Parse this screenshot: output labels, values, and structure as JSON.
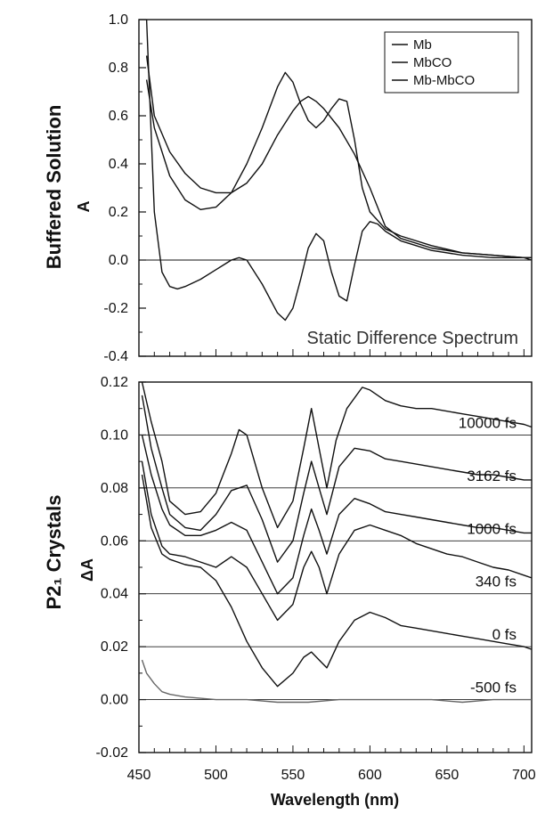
{
  "chart_data": [
    {
      "type": "line",
      "panel_label": "Buffered Solution",
      "ylabel": "A",
      "xlim": [
        450,
        705
      ],
      "ylim": [
        -0.4,
        1.0
      ],
      "yticks": [
        -0.4,
        -0.2,
        0.0,
        0.2,
        0.4,
        0.6,
        0.8,
        1.0
      ],
      "ytick_labels": [
        "-0.4",
        "-0.2",
        "0.0",
        "0.2",
        "0.4",
        "0.6",
        "0.8",
        "1.0"
      ],
      "legend_position": "top-right",
      "annotation": "Static Difference Spectrum",
      "zero_line": 0.0,
      "series": [
        {
          "name": "Mb",
          "x": [
            455,
            460,
            470,
            480,
            490,
            500,
            510,
            520,
            530,
            540,
            550,
            555,
            560,
            565,
            570,
            580,
            590,
            600,
            610,
            620,
            640,
            660,
            680,
            700,
            705
          ],
          "y": [
            0.85,
            0.6,
            0.45,
            0.36,
            0.3,
            0.28,
            0.28,
            0.32,
            0.4,
            0.52,
            0.62,
            0.66,
            0.68,
            0.66,
            0.63,
            0.55,
            0.44,
            0.3,
            0.14,
            0.09,
            0.05,
            0.03,
            0.02,
            0.01,
            0.01
          ]
        },
        {
          "name": "MbCO",
          "x": [
            455,
            460,
            470,
            480,
            490,
            500,
            510,
            520,
            530,
            540,
            545,
            550,
            555,
            560,
            565,
            570,
            575,
            580,
            585,
            590,
            595,
            600,
            610,
            620,
            640,
            660,
            680,
            700,
            705
          ],
          "y": [
            0.75,
            0.55,
            0.35,
            0.25,
            0.21,
            0.22,
            0.28,
            0.4,
            0.55,
            0.72,
            0.78,
            0.74,
            0.65,
            0.58,
            0.55,
            0.58,
            0.63,
            0.67,
            0.66,
            0.5,
            0.3,
            0.2,
            0.13,
            0.1,
            0.06,
            0.03,
            0.02,
            0.01,
            0.01
          ]
        },
        {
          "name": "Mb-MbCO",
          "x": [
            455,
            460,
            465,
            470,
            475,
            480,
            490,
            500,
            510,
            515,
            520,
            530,
            540,
            545,
            550,
            555,
            560,
            565,
            570,
            575,
            580,
            585,
            590,
            595,
            600,
            605,
            610,
            620,
            640,
            660,
            680,
            700,
            705
          ],
          "y": [
            1.0,
            0.2,
            -0.05,
            -0.11,
            -0.12,
            -0.11,
            -0.08,
            -0.04,
            0.0,
            0.01,
            0.0,
            -0.1,
            -0.22,
            -0.25,
            -0.2,
            -0.08,
            0.05,
            0.11,
            0.08,
            -0.05,
            -0.15,
            -0.17,
            -0.02,
            0.12,
            0.16,
            0.15,
            0.12,
            0.08,
            0.04,
            0.02,
            0.01,
            0.01,
            0.0
          ]
        }
      ]
    },
    {
      "type": "line",
      "panel_label": "P2₁ Crystals",
      "ylabel": "ΔA",
      "xlabel": "Wavelength (nm)",
      "xlim": [
        450,
        705
      ],
      "xticks": [
        450,
        500,
        550,
        600,
        650,
        700
      ],
      "ylim": [
        -0.02,
        0.12
      ],
      "yticks": [
        -0.02,
        0.0,
        0.02,
        0.04,
        0.06,
        0.08,
        0.1,
        0.12
      ],
      "ytick_labels": [
        "-0.02",
        "0.00",
        "0.02",
        "0.04",
        "0.06",
        "0.08",
        "0.10",
        "0.12"
      ],
      "series": [
        {
          "name": "10000 fs",
          "baseline": 0.1,
          "x": [
            452,
            458,
            465,
            470,
            480,
            490,
            500,
            510,
            515,
            520,
            530,
            540,
            550,
            557,
            562,
            567,
            572,
            578,
            585,
            595,
            600,
            610,
            620,
            630,
            640,
            650,
            660,
            670,
            680,
            690,
            700,
            705
          ],
          "y": [
            0.12,
            0.105,
            0.09,
            0.075,
            0.07,
            0.071,
            0.078,
            0.093,
            0.102,
            0.1,
            0.08,
            0.065,
            0.075,
            0.095,
            0.11,
            0.095,
            0.08,
            0.098,
            0.11,
            0.118,
            0.117,
            0.113,
            0.111,
            0.11,
            0.11,
            0.109,
            0.108,
            0.107,
            0.106,
            0.105,
            0.104,
            0.103
          ]
        },
        {
          "name": "3162 fs",
          "baseline": 0.08,
          "x": [
            452,
            458,
            465,
            470,
            480,
            490,
            500,
            510,
            520,
            530,
            540,
            550,
            557,
            562,
            567,
            572,
            580,
            590,
            600,
            610,
            620,
            630,
            640,
            650,
            660,
            670,
            680,
            690,
            700,
            705
          ],
          "y": [
            0.115,
            0.095,
            0.08,
            0.07,
            0.065,
            0.064,
            0.07,
            0.079,
            0.081,
            0.068,
            0.052,
            0.06,
            0.078,
            0.09,
            0.08,
            0.07,
            0.088,
            0.095,
            0.094,
            0.091,
            0.09,
            0.089,
            0.088,
            0.087,
            0.086,
            0.085,
            0.085,
            0.084,
            0.083,
            0.083
          ]
        },
        {
          "name": "1000 fs",
          "baseline": 0.06,
          "x": [
            452,
            458,
            465,
            470,
            480,
            490,
            500,
            510,
            520,
            530,
            540,
            550,
            557,
            562,
            567,
            572,
            580,
            590,
            600,
            610,
            620,
            630,
            640,
            650,
            660,
            670,
            680,
            690,
            700,
            705
          ],
          "y": [
            0.1,
            0.085,
            0.072,
            0.066,
            0.062,
            0.062,
            0.064,
            0.067,
            0.064,
            0.052,
            0.04,
            0.046,
            0.062,
            0.072,
            0.064,
            0.055,
            0.07,
            0.076,
            0.074,
            0.071,
            0.07,
            0.069,
            0.068,
            0.067,
            0.066,
            0.065,
            0.065,
            0.064,
            0.063,
            0.063
          ]
        },
        {
          "name": "340 fs",
          "baseline": 0.04,
          "x": [
            452,
            458,
            465,
            470,
            480,
            490,
            500,
            510,
            520,
            530,
            540,
            550,
            557,
            562,
            567,
            572,
            580,
            590,
            600,
            610,
            620,
            630,
            640,
            650,
            660,
            670,
            680,
            690,
            700,
            705
          ],
          "y": [
            0.09,
            0.07,
            0.058,
            0.055,
            0.054,
            0.052,
            0.05,
            0.054,
            0.05,
            0.04,
            0.03,
            0.036,
            0.05,
            0.056,
            0.05,
            0.04,
            0.055,
            0.064,
            0.066,
            0.064,
            0.062,
            0.059,
            0.057,
            0.055,
            0.054,
            0.052,
            0.05,
            0.049,
            0.047,
            0.046
          ]
        },
        {
          "name": "0 fs",
          "baseline": 0.02,
          "x": [
            452,
            458,
            465,
            470,
            480,
            490,
            500,
            510,
            520,
            530,
            540,
            550,
            557,
            562,
            567,
            572,
            580,
            590,
            600,
            610,
            620,
            630,
            640,
            650,
            660,
            670,
            680,
            690,
            700,
            705
          ],
          "y": [
            0.085,
            0.065,
            0.055,
            0.053,
            0.051,
            0.05,
            0.045,
            0.035,
            0.022,
            0.012,
            0.005,
            0.01,
            0.016,
            0.018,
            0.015,
            0.012,
            0.022,
            0.03,
            0.033,
            0.031,
            0.028,
            0.027,
            0.026,
            0.025,
            0.024,
            0.023,
            0.022,
            0.021,
            0.02,
            0.019
          ]
        },
        {
          "name": "-500 fs",
          "baseline": 0.0,
          "x": [
            452,
            455,
            460,
            465,
            470,
            480,
            500,
            520,
            540,
            560,
            580,
            600,
            620,
            640,
            660,
            680,
            700,
            705
          ],
          "y": [
            0.015,
            0.01,
            0.006,
            0.003,
            0.002,
            0.001,
            0.0,
            0.0,
            -0.001,
            -0.001,
            0.0,
            0.0,
            0.0,
            0.0,
            -0.001,
            0.0,
            0.0,
            0.0
          ]
        }
      ]
    }
  ]
}
